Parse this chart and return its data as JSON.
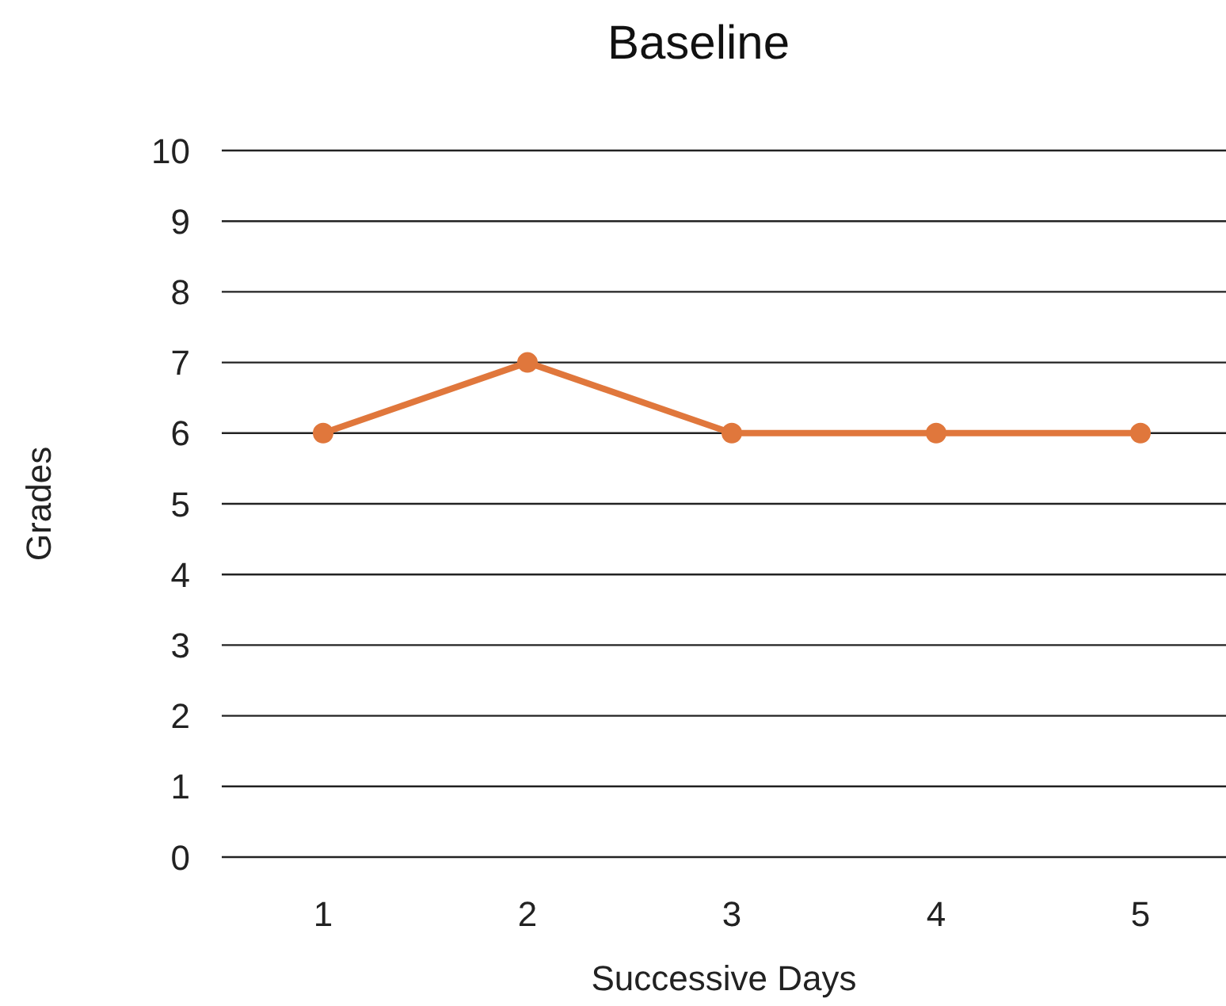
{
  "chart_data": {
    "type": "line",
    "title": "Baseline",
    "xlabel": "Successive Days",
    "ylabel": "Grades",
    "categories": [
      "1",
      "2",
      "3",
      "4",
      "5"
    ],
    "series": [
      {
        "color": "#e0773c",
        "values": [
          6,
          7,
          6,
          6,
          6
        ]
      }
    ],
    "ylim": [
      0,
      10
    ],
    "yticks": [
      0,
      1,
      2,
      3,
      4,
      5,
      6,
      7,
      8,
      9,
      10
    ],
    "grid": "y",
    "legend": false,
    "marker": "circle",
    "line_style": "solid"
  }
}
